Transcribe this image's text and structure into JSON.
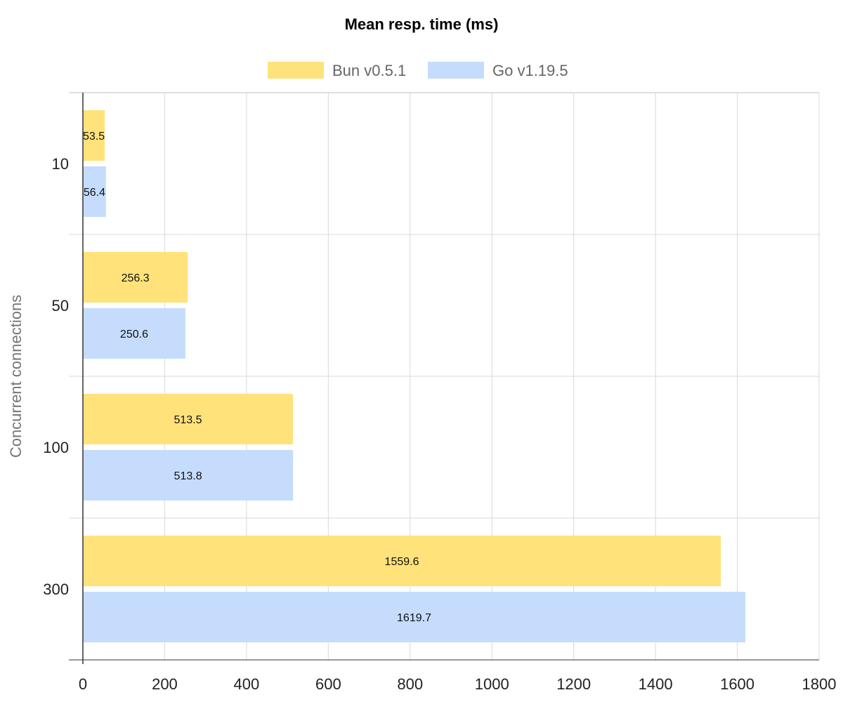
{
  "chart_data": {
    "type": "bar",
    "orientation": "horizontal",
    "title": "Mean resp. time (ms)",
    "xlabel": "",
    "ylabel": "Concurrent connections",
    "categories": [
      "10",
      "50",
      "100",
      "300"
    ],
    "series": [
      {
        "name": "Bun v0.5.1",
        "color": "#FFE27A",
        "values": [
          53.5,
          256.3,
          513.5,
          1559.6
        ]
      },
      {
        "name": "Go v1.19.5",
        "color": "#C5DCFD",
        "values": [
          56.4,
          250.6,
          513.8,
          1619.7
        ]
      }
    ],
    "xlim": [
      0,
      1800
    ],
    "xticks": [
      0,
      200,
      400,
      600,
      800,
      1000,
      1200,
      1400,
      1600,
      1800
    ],
    "grid": true,
    "legend": "top-center",
    "data_labels": true
  }
}
